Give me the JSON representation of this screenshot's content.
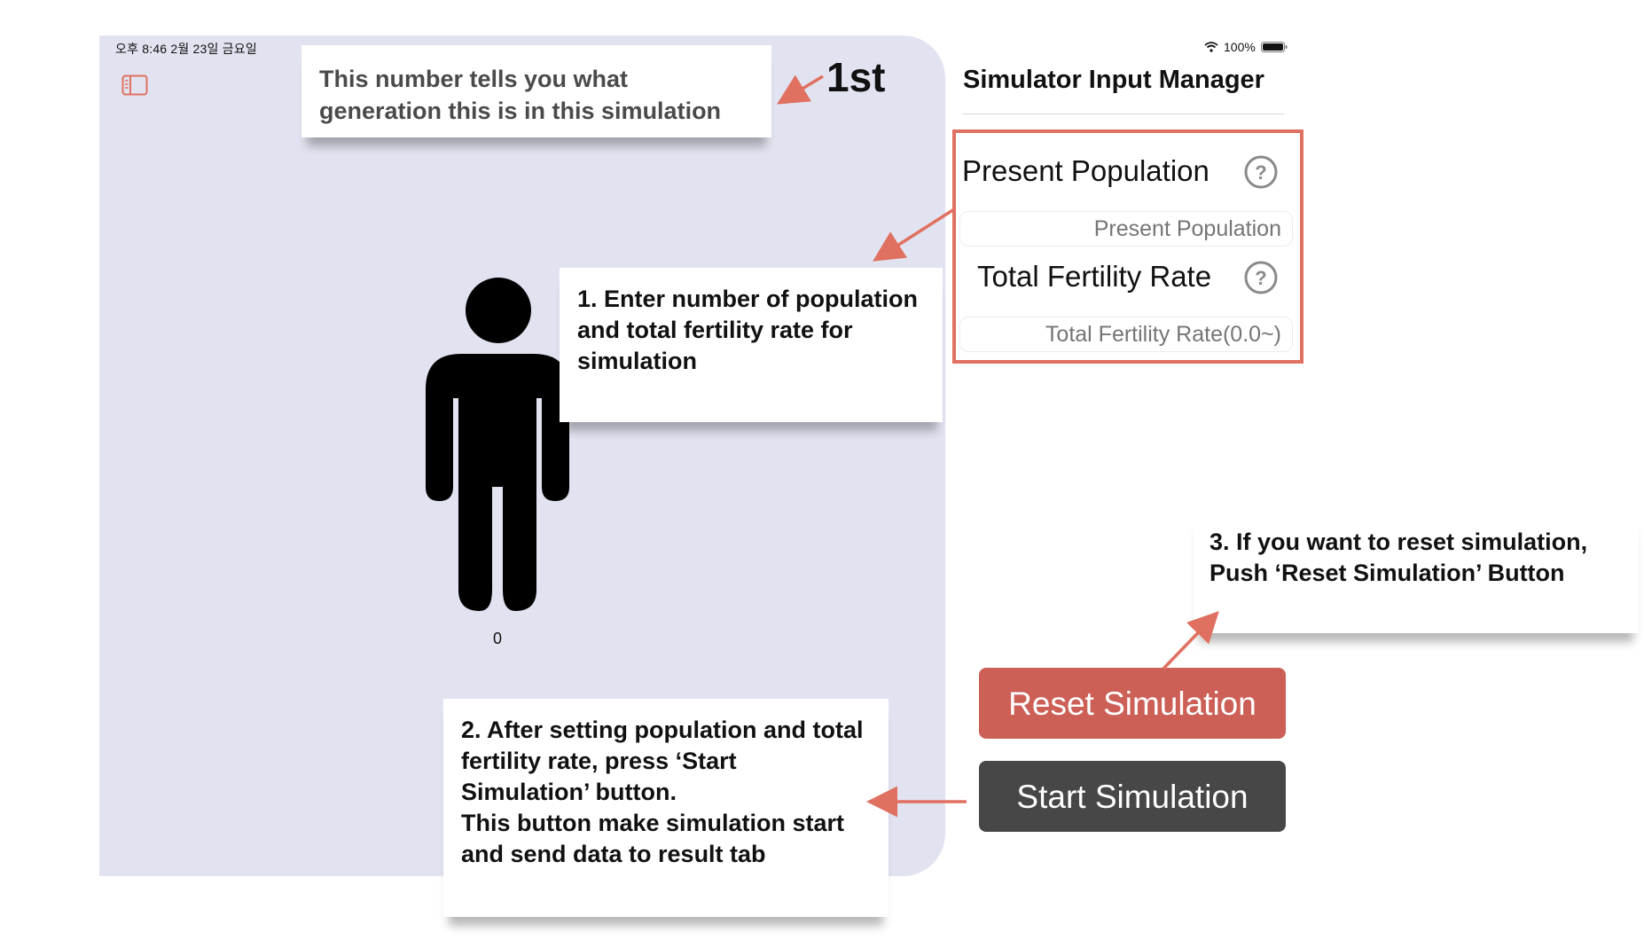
{
  "status_bar": {
    "time_date": "오후 8:46   2월 23일 금요일",
    "battery": "100%"
  },
  "simulation": {
    "generation": "1st",
    "person_count": "0"
  },
  "input_manager": {
    "title": "Simulator Input Manager",
    "population": {
      "label": "Present Population",
      "placeholder": "Present Population"
    },
    "fertility": {
      "label": "Total Fertility Rate",
      "placeholder": "Total Fertility Rate(0.0~)"
    },
    "reset_label": "Reset Simulation",
    "start_label": "Start Simulation"
  },
  "callouts": {
    "generation": "This number tells you what generation this is  in this simulation",
    "step1": "1. Enter number of population and total fertility rate for simulation",
    "step2_line1": "2. After setting population and total fertility rate, press ‘Start Simulation’ button.",
    "step2_line2": "This button make simulation start and send data to result tab",
    "step3": "3. If you want to reset simulation, Push ‘Reset Simulation’ Button"
  },
  "colors": {
    "panel_bg": "#e2e3f0",
    "accent": "#e07060",
    "reset_button": "#cc5f56",
    "start_button": "#474747"
  },
  "icons": {
    "sidebar": "sidebar-toggle-icon",
    "help": "question-circle-icon",
    "wifi": "wifi-icon",
    "battery": "battery-icon",
    "person": "person-icon"
  }
}
